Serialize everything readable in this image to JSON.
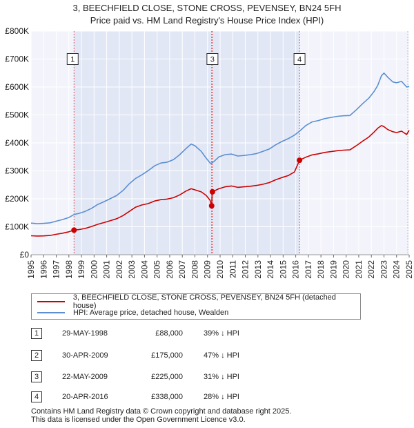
{
  "title_line1": "3, BEECHFIELD CLOSE, STONE CROSS, PEVENSEY, BN24 5FH",
  "title_line2": "Price paid vs. HM Land Registry's House Price Index (HPI)",
  "legend": [
    {
      "label": "3, BEECHFIELD CLOSE, STONE CROSS, PEVENSEY, BN24 5FH (detached house)",
      "color": "#cc0000"
    },
    {
      "label": "HPI: Average price, detached house, Wealden",
      "color": "#5b8fd0"
    }
  ],
  "transactions": [
    {
      "num": "1",
      "date": "29-MAY-1998",
      "price": "£88,000",
      "hpi": "39% ↓ HPI"
    },
    {
      "num": "2",
      "date": "30-APR-2009",
      "price": "£175,000",
      "hpi": "47% ↓ HPI"
    },
    {
      "num": "3",
      "date": "22-MAY-2009",
      "price": "£225,000",
      "hpi": "31% ↓ HPI"
    },
    {
      "num": "4",
      "date": "20-APR-2016",
      "price": "£338,000",
      "hpi": "28% ↓ HPI"
    }
  ],
  "footer_line1": "Contains HM Land Registry data © Crown copyright and database right 2025.",
  "footer_line2": "This data is licensed under the Open Government Licence v3.0.",
  "chart_data": {
    "type": "line",
    "xlim": [
      1995,
      2025
    ],
    "ylim": [
      0,
      800000
    ],
    "y_ticks": [
      {
        "value": 0,
        "label": "£0"
      },
      {
        "value": 100000,
        "label": "£100K"
      },
      {
        "value": 200000,
        "label": "£200K"
      },
      {
        "value": 300000,
        "label": "£300K"
      },
      {
        "value": 400000,
        "label": "£400K"
      },
      {
        "value": 500000,
        "label": "£500K"
      },
      {
        "value": 600000,
        "label": "£600K"
      },
      {
        "value": 700000,
        "label": "£700K"
      },
      {
        "value": 800000,
        "label": "£800K"
      }
    ],
    "x_ticks": [
      "1995",
      "1996",
      "1997",
      "1998",
      "1999",
      "2000",
      "2001",
      "2002",
      "2003",
      "2004",
      "2005",
      "2006",
      "2007",
      "2008",
      "2009",
      "2010",
      "2011",
      "2012",
      "2013",
      "2014",
      "2015",
      "2016",
      "2017",
      "2018",
      "2019",
      "2020",
      "2021",
      "2022",
      "2023",
      "2024",
      "2025"
    ],
    "grid": true,
    "series": [
      {
        "name": "HPI: Average price, detached house, Wealden",
        "color": "#5b8fd0",
        "points": [
          [
            1995.0,
            113000
          ],
          [
            1995.5,
            111000
          ],
          [
            1996.0,
            112000
          ],
          [
            1996.5,
            114000
          ],
          [
            1997.0,
            120000
          ],
          [
            1997.5,
            126000
          ],
          [
            1998.0,
            133000
          ],
          [
            1998.42,
            144000
          ],
          [
            1998.8,
            148000
          ],
          [
            1999.3,
            155000
          ],
          [
            1999.8,
            166000
          ],
          [
            2000.3,
            180000
          ],
          [
            2000.8,
            190000
          ],
          [
            2001.3,
            201000
          ],
          [
            2001.8,
            212000
          ],
          [
            2002.3,
            230000
          ],
          [
            2002.8,
            254000
          ],
          [
            2003.3,
            273000
          ],
          [
            2003.8,
            286000
          ],
          [
            2004.3,
            301000
          ],
          [
            2004.8,
            318000
          ],
          [
            2005.3,
            328000
          ],
          [
            2005.8,
            331000
          ],
          [
            2006.3,
            340000
          ],
          [
            2006.8,
            358000
          ],
          [
            2007.3,
            380000
          ],
          [
            2007.7,
            396000
          ],
          [
            2008.0,
            390000
          ],
          [
            2008.5,
            370000
          ],
          [
            2008.9,
            345000
          ],
          [
            2009.25,
            326000
          ],
          [
            2009.5,
            333000
          ],
          [
            2009.9,
            350000
          ],
          [
            2010.4,
            358000
          ],
          [
            2010.9,
            360000
          ],
          [
            2011.4,
            353000
          ],
          [
            2011.9,
            355000
          ],
          [
            2012.4,
            358000
          ],
          [
            2012.9,
            362000
          ],
          [
            2013.4,
            370000
          ],
          [
            2013.9,
            378000
          ],
          [
            2014.4,
            393000
          ],
          [
            2014.9,
            405000
          ],
          [
            2015.4,
            415000
          ],
          [
            2015.9,
            428000
          ],
          [
            2016.3,
            442000
          ],
          [
            2016.8,
            462000
          ],
          [
            2017.3,
            475000
          ],
          [
            2017.8,
            480000
          ],
          [
            2018.3,
            487000
          ],
          [
            2018.8,
            491000
          ],
          [
            2019.3,
            495000
          ],
          [
            2019.8,
            497000
          ],
          [
            2020.3,
            498000
          ],
          [
            2020.8,
            518000
          ],
          [
            2021.3,
            540000
          ],
          [
            2021.8,
            560000
          ],
          [
            2022.2,
            583000
          ],
          [
            2022.5,
            605000
          ],
          [
            2022.8,
            640000
          ],
          [
            2023.0,
            650000
          ],
          [
            2023.3,
            635000
          ],
          [
            2023.7,
            618000
          ],
          [
            2024.0,
            615000
          ],
          [
            2024.4,
            620000
          ],
          [
            2024.8,
            600000
          ],
          [
            2025.0,
            602000
          ]
        ]
      },
      {
        "name": "3, BEECHFIELD CLOSE, STONE CROSS, PEVENSEY, BN24 5FH (detached house)",
        "color": "#cc0000",
        "points": [
          [
            1995.0,
            68000
          ],
          [
            1995.5,
            67000
          ],
          [
            1996.0,
            67500
          ],
          [
            1996.5,
            69000
          ],
          [
            1997.0,
            73000
          ],
          [
            1997.5,
            77000
          ],
          [
            1998.0,
            82000
          ],
          [
            1998.41,
            88000
          ],
          [
            1998.8,
            90000
          ],
          [
            1999.3,
            94000
          ],
          [
            1999.8,
            101000
          ],
          [
            2000.3,
            109000
          ],
          [
            2000.8,
            115000
          ],
          [
            2001.3,
            122000
          ],
          [
            2001.8,
            129000
          ],
          [
            2002.3,
            140000
          ],
          [
            2002.8,
            155000
          ],
          [
            2003.3,
            170000
          ],
          [
            2003.8,
            178000
          ],
          [
            2004.3,
            183000
          ],
          [
            2004.8,
            192000
          ],
          [
            2005.3,
            197000
          ],
          [
            2005.8,
            199000
          ],
          [
            2006.3,
            204000
          ],
          [
            2006.8,
            214000
          ],
          [
            2007.3,
            228000
          ],
          [
            2007.7,
            236000
          ],
          [
            2008.0,
            232000
          ],
          [
            2008.5,
            225000
          ],
          [
            2008.9,
            212000
          ],
          [
            2009.2,
            195000
          ],
          [
            2009.33,
            175000
          ],
          [
            2009.36,
            210000
          ],
          [
            2009.39,
            225000
          ],
          [
            2009.9,
            236000
          ],
          [
            2010.4,
            243000
          ],
          [
            2010.9,
            246000
          ],
          [
            2011.4,
            241000
          ],
          [
            2011.9,
            243000
          ],
          [
            2012.4,
            245000
          ],
          [
            2012.9,
            248000
          ],
          [
            2013.4,
            252000
          ],
          [
            2013.9,
            258000
          ],
          [
            2014.4,
            268000
          ],
          [
            2014.9,
            276000
          ],
          [
            2015.4,
            283000
          ],
          [
            2015.9,
            296000
          ],
          [
            2016.3,
            338000
          ],
          [
            2016.8,
            349000
          ],
          [
            2017.3,
            357000
          ],
          [
            2017.8,
            361000
          ],
          [
            2018.3,
            366000
          ],
          [
            2018.8,
            369000
          ],
          [
            2019.3,
            372000
          ],
          [
            2019.8,
            374000
          ],
          [
            2020.3,
            375000
          ],
          [
            2020.8,
            390000
          ],
          [
            2021.3,
            406000
          ],
          [
            2021.8,
            421000
          ],
          [
            2022.2,
            438000
          ],
          [
            2022.5,
            452000
          ],
          [
            2022.8,
            462000
          ],
          [
            2023.0,
            458000
          ],
          [
            2023.3,
            448000
          ],
          [
            2023.7,
            440000
          ],
          [
            2024.0,
            437000
          ],
          [
            2024.4,
            442000
          ],
          [
            2024.8,
            430000
          ],
          [
            2025.0,
            445000
          ]
        ]
      }
    ],
    "sales": [
      {
        "num": "1",
        "x": 1998.41,
        "y": 88000,
        "marker_y": 700000
      },
      {
        "num": "2",
        "x": 2009.33,
        "y": 175000,
        "marker_y": 700000
      },
      {
        "num": "3",
        "x": 2009.39,
        "y": 225000,
        "marker_y": 700000
      },
      {
        "num": "4",
        "x": 2016.3,
        "y": 338000,
        "marker_y": 700000
      }
    ],
    "shaded_ranges": [
      [
        1998.41,
        2009.33
      ],
      [
        2009.39,
        2016.3
      ]
    ]
  }
}
